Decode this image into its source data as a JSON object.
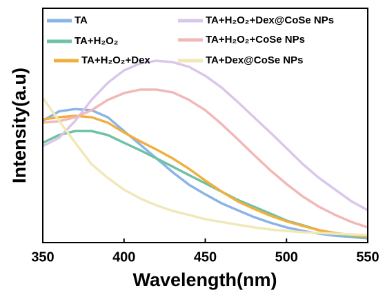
{
  "chart_data": {
    "type": "line",
    "xlabel": "Wavelength(nm)",
    "ylabel": "Intensity(a.u)",
    "x": [
      350,
      360,
      370,
      380,
      390,
      400,
      410,
      420,
      430,
      440,
      450,
      460,
      470,
      480,
      490,
      500,
      510,
      520,
      530,
      540,
      550
    ],
    "xlim": [
      350,
      550
    ],
    "xticks": [
      350,
      400,
      450,
      500,
      550
    ],
    "ylim": [
      0,
      100
    ],
    "series": [
      {
        "name": "TA",
        "color": "#8ab4e8",
        "values": [
          52,
          56,
          57,
          56.5,
          53.5,
          47.6,
          41.8,
          35.9,
          30,
          24.7,
          20.6,
          16.8,
          13.8,
          10.9,
          8.5,
          6.5,
          5,
          3.8,
          2.9,
          2.4,
          1.8
        ]
      },
      {
        "name": "TA+H₂O₂",
        "color": "#6fc1a4",
        "values": [
          42.6,
          45.9,
          47.6,
          47.6,
          45.9,
          42.6,
          39.4,
          35.9,
          32.4,
          28.8,
          25.3,
          21.8,
          18.2,
          15.3,
          12.4,
          9.4,
          7.4,
          5.3,
          3.8,
          2.9,
          2.1
        ]
      },
      {
        "name": "TA+H₂O₂+Dex",
        "color": "#f0b040",
        "values": [
          52.6,
          53.5,
          54.1,
          53.5,
          51.2,
          47,
          43.2,
          39.7,
          35.9,
          31.5,
          26.5,
          21.8,
          17.6,
          14.4,
          11.5,
          9.1,
          7.1,
          5.3,
          4.1,
          3.2,
          2.6
        ]
      },
      {
        "name": "TA+H₂O₂+Dex@CoSe NPs",
        "color": "#d9c6ea",
        "values": [
          41.2,
          44.7,
          52,
          60.9,
          68.2,
          73.5,
          76.5,
          77.6,
          77,
          75,
          71.2,
          66.2,
          60,
          53.5,
          47,
          40.3,
          33.5,
          27.6,
          22.6,
          17.6,
          13.8
        ]
      },
      {
        "name": "TA+H₂O₂+CoSe NPs",
        "color": "#f2b8b8",
        "values": [
          51.2,
          51.8,
          53.5,
          56.5,
          60.9,
          63.8,
          65.3,
          65.3,
          64.1,
          60.9,
          56.5,
          50.6,
          44.1,
          37.4,
          30.9,
          25,
          19.7,
          15.3,
          11.8,
          8.8,
          6.5
        ]
      },
      {
        "name": "TA+Dex@CoSe NPs",
        "color": "#f1e8b8",
        "values": [
          61.8,
          52,
          42.6,
          33.5,
          27.6,
          22.6,
          18.8,
          15.9,
          13.5,
          11.8,
          10,
          8.8,
          7.6,
          6.5,
          5.6,
          5,
          4.4,
          4.1,
          3.8,
          3.5,
          3.2
        ]
      }
    ]
  }
}
